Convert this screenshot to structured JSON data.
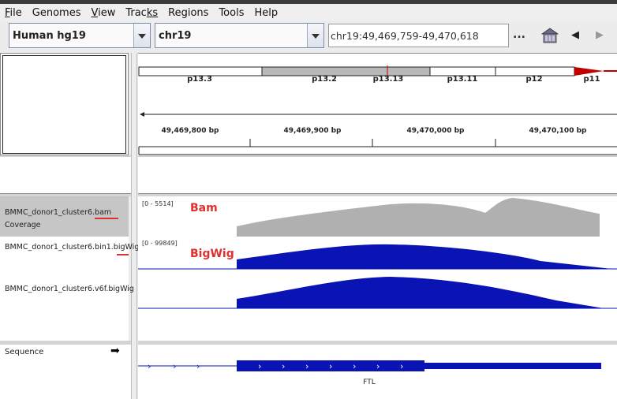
{
  "menu": {
    "items": [
      {
        "mn": "F",
        "rest": "ile"
      },
      {
        "mn": "",
        "rest": "Genomes"
      },
      {
        "mn": "V",
        "rest": "iew"
      },
      {
        "mn": "Trac",
        "rest": "ks",
        "mn_first": true
      },
      {
        "mn": "",
        "rest": "Regions"
      },
      {
        "mn": "",
        "rest": "Tools"
      },
      {
        "mn": "",
        "rest": "Help"
      }
    ],
    "labels": [
      "File",
      "Genomes",
      "View",
      "Tracks",
      "Regions",
      "Tools",
      "Help"
    ]
  },
  "toolbar": {
    "genome": "Human hg19",
    "chromosome": "chr19",
    "locus": "chr19:49,469,759-49,470,618",
    "more_label": "...",
    "back_glyph": "◀",
    "forward_glyph": "▶"
  },
  "ideogram": {
    "bands": [
      "p13.3",
      "p13.2",
      "p13.13",
      "p13.11",
      "p12",
      "p11"
    ]
  },
  "ruler": {
    "ticks": [
      "49,469,800 bp",
      "49,469,900 bp",
      "49,470,000 bp",
      "49,470,100 bp"
    ]
  },
  "tracks": {
    "bam": {
      "name": "BMMC_donor1_cluster6.bam Coverage",
      "range": "[0 - 5514]",
      "annotation": "Bam",
      "color": "#b0b0b0"
    },
    "bigwig1": {
      "name": "BMMC_donor1_cluster6.bin1.bigWig",
      "range": "[0 - 99849]",
      "annotation": "BigWig",
      "color": "#0a14b4"
    },
    "bigwig2": {
      "name": "BMMC_donor1_cluster6.v6f.bigWig",
      "color": "#0a14b4"
    }
  },
  "sequence": {
    "label": "Sequence",
    "strand_arrow": "➡",
    "gene": "FTL"
  },
  "colors": {
    "annotation": "#e03030",
    "bam_fill": "#b0b0b0",
    "bigwig_fill": "#0a14b4",
    "centromere": "#c00000"
  }
}
